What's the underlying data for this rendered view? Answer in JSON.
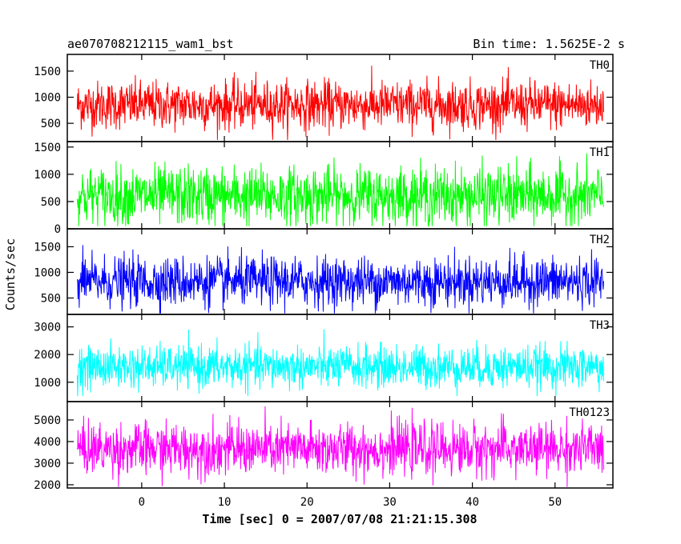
{
  "header": {
    "title": "ae070708212115_wam1_bst",
    "bin_time": "Bin time: 1.5625E-2 s"
  },
  "chart_data": {
    "type": "line",
    "title": "ae070708212115_wam1_bst",
    "xlabel": "Time [sec] 0 = 2007/07/08 21:21:15.308",
    "ylabel": "Counts/sec",
    "xlim": [
      -9,
      57
    ],
    "x_ticks": [
      0,
      10,
      20,
      30,
      40,
      50
    ],
    "x_tick_labels": [
      "0",
      "10",
      "20",
      "30",
      "40",
      "50"
    ],
    "data_x_range": [
      -7.8,
      55.9
    ],
    "grid": false,
    "panels": [
      {
        "name": "TH0",
        "color": "#ff0000",
        "ylim": [
          150,
          1820
        ],
        "y_ticks": [
          500,
          1000,
          1500
        ],
        "y_tick_labels": [
          "500",
          "1000",
          "1500"
        ],
        "mean": 850,
        "spread": 230,
        "clip": [
          180,
          1800
        ]
      },
      {
        "name": "TH1",
        "color": "#00ff00",
        "ylim": [
          0,
          1600
        ],
        "y_ticks": [
          0,
          500,
          1000,
          1500
        ],
        "y_tick_labels": [
          "0",
          "500",
          "1000",
          "1500"
        ],
        "mean": 600,
        "spread": 270,
        "clip": [
          50,
          1590
        ]
      },
      {
        "name": "TH2",
        "color": "#0000ff",
        "ylim": [
          180,
          1850
        ],
        "y_ticks": [
          500,
          1000,
          1500
        ],
        "y_tick_labels": [
          "500",
          "1000",
          "1500"
        ],
        "mean": 820,
        "spread": 240,
        "clip": [
          200,
          1840
        ]
      },
      {
        "name": "TH3",
        "color": "#00ffff",
        "ylim": [
          300,
          3450
        ],
        "y_ticks": [
          1000,
          2000,
          3000
        ],
        "y_tick_labels": [
          "1000",
          "2000",
          "3000"
        ],
        "mean": 1550,
        "spread": 380,
        "clip": [
          500,
          3400
        ]
      },
      {
        "name": "TH0123",
        "color": "#ff00ff",
        "ylim": [
          1850,
          5850
        ],
        "y_ticks": [
          2000,
          3000,
          4000,
          5000
        ],
        "y_tick_labels": [
          "2000",
          "3000",
          "4000",
          "5000"
        ],
        "mean": 3650,
        "spread": 600,
        "clip": [
          1900,
          5800
        ]
      }
    ]
  }
}
